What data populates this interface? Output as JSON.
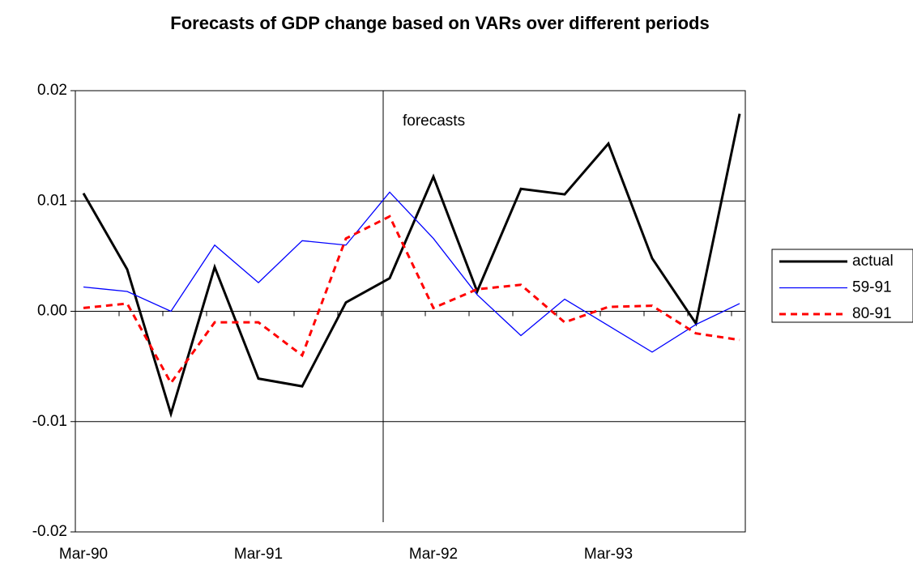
{
  "chart_data": {
    "type": "line",
    "title": "Forecasts of GDP change based on VARs over different periods",
    "annotation": "forecasts",
    "categories": [
      "Mar-90",
      null,
      null,
      null,
      "Mar-91",
      null,
      null,
      null,
      "Mar-92",
      null,
      null,
      null,
      "Mar-93",
      null,
      null,
      null
    ],
    "series": [
      {
        "name": "actual",
        "color": "#000000",
        "linestyle": "solid",
        "values": [
          0.0107,
          0.0038,
          -0.0093,
          0.004,
          -0.0061,
          -0.0068,
          0.0008,
          0.003,
          0.0122,
          0.0018,
          0.0111,
          0.0106,
          0.0152,
          0.0048,
          -0.0011,
          0.0179
        ]
      },
      {
        "name": "59-91",
        "color": "#0000ff",
        "linestyle": "solid",
        "values": [
          0.0022,
          0.0018,
          0.0,
          0.006,
          0.0026,
          0.0064,
          0.006,
          0.0108,
          0.0066,
          0.0015,
          -0.0022,
          0.0011,
          -0.0013,
          -0.0037,
          -0.0012,
          0.0007
        ]
      },
      {
        "name": "80-91",
        "color": "#ff0000",
        "linestyle": "dashed",
        "values": [
          0.0003,
          0.0007,
          -0.0065,
          -0.001,
          -0.001,
          -0.004,
          0.0066,
          0.0086,
          0.0003,
          0.002,
          0.0024,
          -0.001,
          0.0004,
          0.0005,
          -0.002,
          -0.0026
        ]
      }
    ],
    "ylim": [
      -0.02,
      0.02
    ],
    "yticks": [
      -0.02,
      -0.01,
      {
        "value": 0,
        "label": "0.00"
      },
      0.01,
      0.02
    ],
    "grid": true,
    "legend": "right"
  }
}
